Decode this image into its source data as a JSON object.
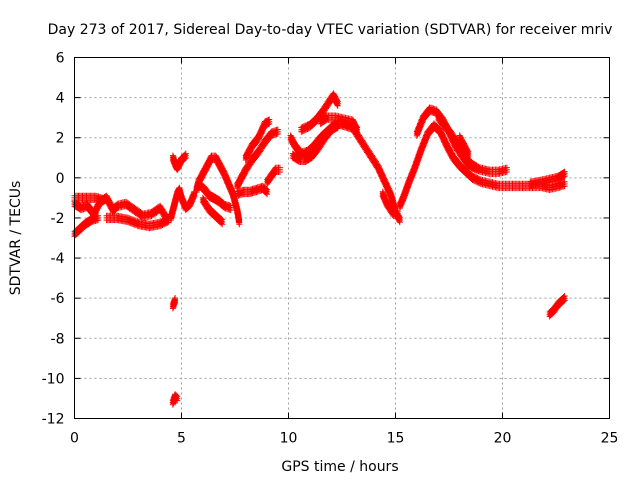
{
  "chart_data": {
    "type": "scatter",
    "title": "Day 273 of 2017, Sidereal Day-to-day VTEC variation (SDTVAR) for receiver mriv",
    "xlabel": "GPS time / hours",
    "ylabel": "SDTVAR / TECUs",
    "xlim": [
      0,
      25
    ],
    "ylim": [
      -12,
      6
    ],
    "xticks": [
      "0",
      "5",
      "10",
      "15",
      "20",
      "25"
    ],
    "yticks": [
      "6",
      "4",
      "2",
      "0",
      "-2",
      "-4",
      "-6",
      "-8",
      "-10",
      "-12"
    ],
    "grid": true,
    "marker": "+",
    "color": "#ff0000",
    "series": [
      {
        "name": "SDTVAR",
        "segments": [
          [
            [
              0.0,
              -1.3
            ],
            [
              0.3,
              -1.5
            ],
            [
              0.6,
              -1.4
            ],
            [
              0.9,
              -1.8
            ],
            [
              1.2,
              -1.2
            ],
            [
              1.5,
              -1.0
            ],
            [
              1.8,
              -1.6
            ],
            [
              2.0,
              -1.4
            ],
            [
              2.4,
              -1.3
            ],
            [
              2.8,
              -1.6
            ],
            [
              3.2,
              -1.9
            ],
            [
              3.6,
              -1.8
            ],
            [
              4.0,
              -1.5
            ],
            [
              4.3,
              -2.0
            ]
          ],
          [
            [
              0.0,
              -2.8
            ],
            [
              0.2,
              -2.6
            ],
            [
              0.5,
              -2.3
            ],
            [
              0.8,
              -2.1
            ],
            [
              1.1,
              -2.0
            ]
          ],
          [
            [
              1.5,
              -2.0
            ],
            [
              2.0,
              -2.0
            ],
            [
              2.5,
              -2.1
            ],
            [
              3.0,
              -2.3
            ],
            [
              3.5,
              -2.4
            ],
            [
              4.0,
              -2.3
            ],
            [
              4.4,
              -2.1
            ]
          ],
          [
            [
              0.0,
              -1.0
            ],
            [
              0.5,
              -1.0
            ],
            [
              1.0,
              -1.0
            ],
            [
              1.3,
              -1.1
            ]
          ],
          [
            [
              4.5,
              -2.0
            ],
            [
              4.6,
              -1.6
            ],
            [
              4.7,
              -1.2
            ],
            [
              4.8,
              -0.8
            ],
            [
              4.9,
              -0.6
            ],
            [
              5.0,
              -1.0
            ],
            [
              5.2,
              -1.5
            ],
            [
              5.4,
              -1.3
            ],
            [
              5.6,
              -0.8
            ]
          ],
          [
            [
              4.6,
              1.0
            ],
            [
              4.7,
              0.7
            ],
            [
              4.8,
              0.5
            ],
            [
              4.9,
              0.7
            ],
            [
              5.0,
              0.9
            ],
            [
              5.2,
              1.1
            ]
          ],
          [
            [
              5.7,
              -0.6
            ],
            [
              5.8,
              -0.2
            ],
            [
              6.0,
              0.2
            ],
            [
              6.2,
              0.6
            ],
            [
              6.4,
              1.0
            ],
            [
              6.6,
              1.0
            ],
            [
              6.8,
              0.6
            ],
            [
              7.0,
              0.2
            ],
            [
              7.2,
              -0.3
            ],
            [
              7.4,
              -0.8
            ],
            [
              7.6,
              -1.6
            ],
            [
              7.7,
              -2.2
            ]
          ],
          [
            [
              5.9,
              -0.4
            ],
            [
              6.1,
              -0.6
            ],
            [
              6.3,
              -0.9
            ],
            [
              6.5,
              -1.0
            ],
            [
              6.8,
              -1.2
            ],
            [
              7.0,
              -1.4
            ],
            [
              7.3,
              -1.5
            ]
          ],
          [
            [
              7.6,
              -0.8
            ],
            [
              7.9,
              -0.7
            ],
            [
              8.2,
              -0.7
            ],
            [
              8.5,
              -0.6
            ],
            [
              8.8,
              -0.5
            ],
            [
              9.0,
              -0.7
            ]
          ],
          [
            [
              7.6,
              -0.4
            ],
            [
              7.8,
              0.0
            ],
            [
              8.0,
              0.4
            ],
            [
              8.3,
              0.9
            ],
            [
              8.6,
              1.3
            ],
            [
              8.9,
              1.8
            ],
            [
              9.2,
              2.2
            ],
            [
              9.5,
              2.3
            ]
          ],
          [
            [
              8.0,
              1.0
            ],
            [
              8.3,
              1.6
            ],
            [
              8.6,
              2.0
            ],
            [
              8.9,
              2.7
            ],
            [
              9.1,
              2.8
            ]
          ],
          [
            [
              9.0,
              -0.2
            ],
            [
              9.2,
              0.1
            ],
            [
              9.4,
              0.4
            ],
            [
              9.6,
              0.4
            ]
          ],
          [
            [
              10.1,
              2.0
            ],
            [
              10.3,
              1.6
            ],
            [
              10.6,
              1.2
            ],
            [
              10.9,
              1.3
            ],
            [
              11.2,
              1.6
            ],
            [
              11.5,
              2.0
            ],
            [
              11.8,
              2.3
            ],
            [
              12.1,
              2.6
            ],
            [
              12.4,
              2.7
            ],
            [
              12.7,
              2.6
            ],
            [
              13.0,
              2.5
            ],
            [
              13.3,
              2.0
            ],
            [
              13.6,
              1.5
            ],
            [
              13.9,
              1.0
            ],
            [
              14.2,
              0.5
            ],
            [
              14.5,
              -0.2
            ],
            [
              14.8,
              -0.9
            ],
            [
              15.0,
              -1.7
            ],
            [
              15.2,
              -2.1
            ]
          ],
          [
            [
              10.2,
              1.1
            ],
            [
              10.5,
              0.9
            ],
            [
              10.8,
              0.9
            ],
            [
              11.1,
              1.1
            ],
            [
              11.4,
              1.5
            ],
            [
              11.7,
              2.0
            ],
            [
              12.0,
              2.4
            ],
            [
              12.3,
              2.6
            ]
          ],
          [
            [
              10.6,
              2.4
            ],
            [
              11.0,
              2.6
            ],
            [
              11.3,
              2.9
            ],
            [
              11.6,
              3.3
            ],
            [
              11.9,
              3.8
            ],
            [
              12.1,
              4.1
            ],
            [
              12.3,
              3.7
            ]
          ],
          [
            [
              11.5,
              2.8
            ],
            [
              11.8,
              3.0
            ],
            [
              12.2,
              3.0
            ],
            [
              12.6,
              2.9
            ],
            [
              13.0,
              2.8
            ],
            [
              13.2,
              2.4
            ]
          ],
          [
            [
              14.4,
              -0.8
            ],
            [
              14.6,
              -1.3
            ],
            [
              14.9,
              -1.8
            ],
            [
              15.1,
              -1.8
            ]
          ],
          [
            [
              15.2,
              -1.4
            ],
            [
              15.4,
              -0.9
            ],
            [
              15.6,
              -0.3
            ],
            [
              15.9,
              0.5
            ],
            [
              16.2,
              1.4
            ],
            [
              16.5,
              2.2
            ],
            [
              16.8,
              2.6
            ],
            [
              17.1,
              2.3
            ],
            [
              17.4,
              1.6
            ],
            [
              17.7,
              1.0
            ],
            [
              18.0,
              0.6
            ],
            [
              18.3,
              0.3
            ],
            [
              18.6,
              0.0
            ],
            [
              19.0,
              -0.2
            ],
            [
              19.4,
              -0.3
            ],
            [
              19.8,
              -0.4
            ],
            [
              20.2,
              -0.4
            ],
            [
              20.6,
              -0.4
            ],
            [
              21.0,
              -0.4
            ],
            [
              21.4,
              -0.4
            ],
            [
              21.8,
              -0.4
            ],
            [
              22.2,
              -0.5
            ],
            [
              22.6,
              -0.4
            ],
            [
              22.9,
              -0.3
            ]
          ],
          [
            [
              16.0,
              2.2
            ],
            [
              16.3,
              3.0
            ],
            [
              16.6,
              3.4
            ],
            [
              16.9,
              3.3
            ],
            [
              17.2,
              2.9
            ],
            [
              17.5,
              2.3
            ],
            [
              17.8,
              1.6
            ],
            [
              18.1,
              1.1
            ],
            [
              18.4,
              0.7
            ],
            [
              18.7,
              0.5
            ],
            [
              19.0,
              0.4
            ],
            [
              19.4,
              0.3
            ],
            [
              19.8,
              0.3
            ],
            [
              20.2,
              0.4
            ]
          ],
          [
            [
              17.0,
              3.0
            ],
            [
              17.3,
              2.6
            ],
            [
              17.6,
              2.2
            ],
            [
              17.9,
              1.7
            ],
            [
              18.2,
              1.2
            ],
            [
              18.5,
              0.7
            ],
            [
              18.8,
              0.5
            ]
          ],
          [
            [
              18.0,
              2.0
            ],
            [
              18.2,
              1.6
            ],
            [
              18.4,
              1.2
            ]
          ],
          [
            [
              21.3,
              -0.3
            ],
            [
              21.8,
              -0.2
            ],
            [
              22.2,
              -0.1
            ],
            [
              22.6,
              0.0
            ],
            [
              22.9,
              0.2
            ]
          ],
          [
            [
              22.2,
              -6.8
            ],
            [
              22.4,
              -6.6
            ],
            [
              22.6,
              -6.3
            ],
            [
              22.8,
              -6.1
            ],
            [
              22.9,
              -6.0
            ]
          ],
          [
            [
              4.6,
              -6.4
            ],
            [
              4.7,
              -6.1
            ]
          ],
          [
            [
              4.6,
              -11.2
            ],
            [
              4.7,
              -10.9
            ],
            [
              4.8,
              -11.0
            ]
          ],
          [
            [
              6.0,
              -1.1
            ],
            [
              6.3,
              -1.6
            ],
            [
              6.6,
              -1.9
            ],
            [
              6.9,
              -2.2
            ]
          ]
        ]
      }
    ]
  }
}
